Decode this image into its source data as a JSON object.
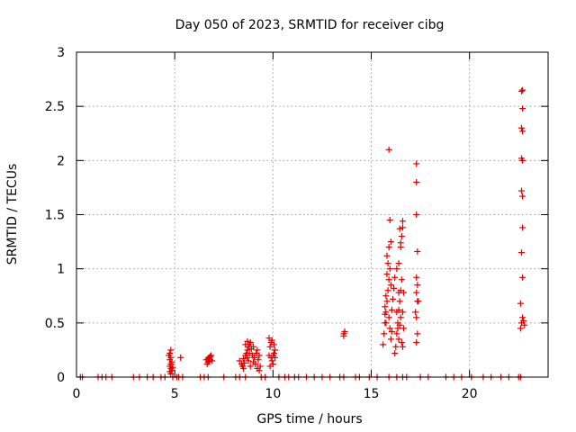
{
  "chart_data": {
    "type": "scatter",
    "title": "Day 050 of 2023, SRMTID for receiver cibg",
    "xlabel": "GPS time / hours",
    "ylabel": "SRMTID / TECUs",
    "xlim": [
      0,
      24
    ],
    "ylim": [
      0,
      3
    ],
    "xticks": [
      0,
      5,
      10,
      15,
      20
    ],
    "xtick_labels": [
      "0",
      "5",
      "10",
      "15",
      "20"
    ],
    "yticks": [
      0,
      0.5,
      1,
      1.5,
      2,
      2.5,
      3
    ],
    "ytick_labels": [
      "0",
      "0.5",
      "1",
      "1.5",
      "2",
      "2.5",
      "3"
    ],
    "grid": true,
    "marker": "+",
    "color": "#e00000",
    "series": [
      {
        "name": "SRMTID",
        "points": [
          [
            0.2,
            0
          ],
          [
            0.3,
            0
          ],
          [
            1.1,
            0
          ],
          [
            1.3,
            0
          ],
          [
            1.5,
            0
          ],
          [
            1.8,
            0
          ],
          [
            2.9,
            0
          ],
          [
            3.2,
            0
          ],
          [
            3.6,
            0
          ],
          [
            3.9,
            0
          ],
          [
            4.3,
            0
          ],
          [
            4.5,
            0
          ],
          [
            4.9,
            0
          ],
          [
            5.1,
            0
          ],
          [
            5.2,
            0
          ],
          [
            5.4,
            0
          ],
          [
            6.3,
            0
          ],
          [
            6.5,
            0
          ],
          [
            6.7,
            0
          ],
          [
            7.5,
            0
          ],
          [
            8.1,
            0
          ],
          [
            8.3,
            0
          ],
          [
            8.6,
            0
          ],
          [
            9.4,
            0
          ],
          [
            9.6,
            0
          ],
          [
            10.3,
            0
          ],
          [
            10.6,
            0
          ],
          [
            10.8,
            0
          ],
          [
            11.1,
            0
          ],
          [
            11.3,
            0
          ],
          [
            11.7,
            0
          ],
          [
            12.1,
            0
          ],
          [
            12.5,
            0
          ],
          [
            12.9,
            0
          ],
          [
            13.4,
            0
          ],
          [
            13.6,
            0
          ],
          [
            14.2,
            0
          ],
          [
            14.4,
            0
          ],
          [
            14.9,
            0
          ],
          [
            15.3,
            0
          ],
          [
            15.9,
            0
          ],
          [
            16.3,
            0
          ],
          [
            16.6,
            0
          ],
          [
            16.8,
            0
          ],
          [
            17.5,
            0
          ],
          [
            17.9,
            0
          ],
          [
            18.8,
            0
          ],
          [
            19.2,
            0
          ],
          [
            19.6,
            0
          ],
          [
            20.1,
            0
          ],
          [
            20.7,
            0
          ],
          [
            21.1,
            0
          ],
          [
            21.6,
            0
          ],
          [
            22.0,
            0
          ],
          [
            22.5,
            0
          ],
          [
            22.6,
            0
          ],
          [
            4.75,
            0.05
          ],
          [
            4.8,
            0.08
          ],
          [
            4.75,
            0.1
          ],
          [
            4.8,
            0.12
          ],
          [
            4.85,
            0.14
          ],
          [
            4.75,
            0.16
          ],
          [
            4.8,
            0.18
          ],
          [
            4.75,
            0.22
          ],
          [
            4.8,
            0.25
          ],
          [
            4.85,
            0.06
          ],
          [
            4.9,
            0.09
          ],
          [
            4.7,
            0.2
          ],
          [
            4.8,
            0.03
          ],
          [
            5.3,
            0.18
          ],
          [
            6.65,
            0.12
          ],
          [
            6.7,
            0.14
          ],
          [
            6.75,
            0.15
          ],
          [
            6.8,
            0.16
          ],
          [
            6.7,
            0.17
          ],
          [
            6.75,
            0.18
          ],
          [
            6.8,
            0.19
          ],
          [
            6.85,
            0.2
          ],
          [
            6.6,
            0.16
          ],
          [
            6.9,
            0.15
          ],
          [
            8.3,
            0.15
          ],
          [
            8.4,
            0.12
          ],
          [
            8.5,
            0.17
          ],
          [
            8.45,
            0.1
          ],
          [
            8.55,
            0.13
          ],
          [
            8.6,
            0.2
          ],
          [
            8.65,
            0.22
          ],
          [
            8.7,
            0.25
          ],
          [
            8.75,
            0.28
          ],
          [
            8.8,
            0.3
          ],
          [
            8.85,
            0.32
          ],
          [
            8.7,
            0.18
          ],
          [
            8.75,
            0.15
          ],
          [
            8.8,
            0.22
          ],
          [
            8.9,
            0.26
          ],
          [
            8.95,
            0.2
          ],
          [
            8.6,
            0.3
          ],
          [
            8.7,
            0.33
          ],
          [
            8.85,
            0.1
          ],
          [
            9.0,
            0.14
          ],
          [
            9.05,
            0.18
          ],
          [
            9.1,
            0.12
          ],
          [
            9.15,
            0.22
          ],
          [
            9.2,
            0.25
          ],
          [
            9.25,
            0.16
          ],
          [
            9.3,
            0.2
          ],
          [
            9.35,
            0.1
          ],
          [
            9.0,
            0.28
          ],
          [
            9.2,
            0.08
          ],
          [
            9.3,
            0.06
          ],
          [
            8.5,
            0.08
          ],
          [
            9.8,
            0.2
          ],
          [
            9.85,
            0.28
          ],
          [
            9.9,
            0.32
          ],
          [
            9.95,
            0.34
          ],
          [
            10.0,
            0.2
          ],
          [
            10.05,
            0.22
          ],
          [
            10.1,
            0.25
          ],
          [
            9.9,
            0.18
          ],
          [
            9.95,
            0.15
          ],
          [
            10.0,
            0.12
          ],
          [
            10.05,
            0.3
          ],
          [
            9.85,
            0.1
          ],
          [
            10.1,
            0.18
          ],
          [
            9.8,
            0.36
          ],
          [
            13.6,
            0.4
          ],
          [
            13.65,
            0.42
          ],
          [
            13.6,
            0.38
          ],
          [
            15.6,
            0.3
          ],
          [
            15.65,
            0.4
          ],
          [
            15.7,
            0.5
          ],
          [
            15.75,
            0.6
          ],
          [
            15.8,
            0.7
          ],
          [
            15.85,
            0.8
          ],
          [
            15.9,
            0.9
          ],
          [
            15.95,
            1.0
          ],
          [
            16.0,
            0.85
          ],
          [
            15.7,
            0.65
          ],
          [
            15.75,
            0.75
          ],
          [
            15.8,
            0.95
          ],
          [
            15.85,
            1.05
          ],
          [
            15.9,
            0.55
          ],
          [
            15.95,
            0.45
          ],
          [
            16.0,
            0.35
          ],
          [
            16.05,
            0.62
          ],
          [
            16.1,
            0.72
          ],
          [
            16.15,
            0.82
          ],
          [
            16.2,
            0.92
          ],
          [
            15.8,
            1.12
          ],
          [
            15.9,
            1.2
          ],
          [
            15.95,
            1.45
          ],
          [
            15.9,
            2.1
          ],
          [
            16.0,
            1.25
          ],
          [
            15.75,
            0.5
          ],
          [
            15.7,
            0.58
          ],
          [
            16.05,
            0.42
          ],
          [
            16.2,
            0.22
          ],
          [
            16.25,
            0.28
          ],
          [
            16.3,
            0.4
          ],
          [
            16.35,
            0.5
          ],
          [
            16.4,
            0.62
          ],
          [
            16.45,
            0.7
          ],
          [
            16.5,
            0.8
          ],
          [
            16.55,
            0.9
          ],
          [
            16.3,
            1.0
          ],
          [
            16.4,
            1.05
          ],
          [
            16.5,
            1.2
          ],
          [
            16.55,
            1.3
          ],
          [
            16.6,
            1.38
          ],
          [
            16.45,
            1.37
          ],
          [
            16.6,
            1.44
          ],
          [
            16.5,
            1.24
          ],
          [
            16.35,
            0.45
          ],
          [
            16.4,
            0.35
          ],
          [
            16.45,
            0.48
          ],
          [
            16.5,
            0.55
          ],
          [
            16.55,
            0.32
          ],
          [
            16.6,
            0.28
          ],
          [
            16.4,
            0.78
          ],
          [
            16.3,
            0.6
          ],
          [
            16.6,
            0.6
          ],
          [
            16.65,
            0.45
          ],
          [
            16.65,
            0.78
          ],
          [
            17.3,
            0.32
          ],
          [
            17.35,
            0.4
          ],
          [
            17.3,
            0.55
          ],
          [
            17.35,
            0.7
          ],
          [
            17.3,
            0.78
          ],
          [
            17.35,
            0.85
          ],
          [
            17.3,
            0.92
          ],
          [
            17.35,
            1.16
          ],
          [
            17.3,
            1.5
          ],
          [
            17.3,
            1.8
          ],
          [
            17.3,
            1.97
          ],
          [
            17.4,
            0.7
          ],
          [
            17.25,
            0.6
          ],
          [
            22.6,
            0.45
          ],
          [
            22.65,
            0.5
          ],
          [
            22.7,
            0.55
          ],
          [
            22.75,
            0.52
          ],
          [
            22.8,
            0.48
          ],
          [
            22.6,
            0.68
          ],
          [
            22.7,
            0.92
          ],
          [
            22.65,
            1.15
          ],
          [
            22.7,
            1.38
          ],
          [
            22.7,
            1.67
          ],
          [
            22.65,
            1.72
          ],
          [
            22.7,
            2.0
          ],
          [
            22.65,
            2.02
          ],
          [
            22.7,
            2.27
          ],
          [
            22.65,
            2.3
          ],
          [
            22.7,
            2.48
          ],
          [
            22.65,
            2.64
          ],
          [
            22.7,
            2.65
          ]
        ]
      }
    ]
  }
}
